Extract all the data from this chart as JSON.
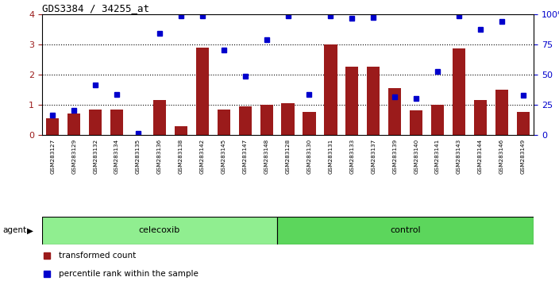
{
  "title": "GDS3384 / 34255_at",
  "samples": [
    "GSM283127",
    "GSM283129",
    "GSM283132",
    "GSM283134",
    "GSM283135",
    "GSM283136",
    "GSM283138",
    "GSM283142",
    "GSM283145",
    "GSM283147",
    "GSM283148",
    "GSM283128",
    "GSM283130",
    "GSM283131",
    "GSM283133",
    "GSM283137",
    "GSM283139",
    "GSM283140",
    "GSM283141",
    "GSM283143",
    "GSM283144",
    "GSM283146",
    "GSM283149"
  ],
  "red_bars": [
    0.55,
    0.7,
    0.85,
    0.85,
    0.0,
    1.15,
    0.28,
    2.9,
    0.85,
    0.95,
    1.0,
    1.05,
    0.75,
    3.0,
    2.25,
    2.25,
    1.55,
    0.8,
    1.0,
    2.85,
    1.15,
    1.5,
    0.75
  ],
  "blue_squares": [
    0.65,
    0.8,
    1.65,
    1.35,
    0.05,
    3.35,
    3.95,
    3.95,
    2.8,
    1.95,
    3.15,
    3.95,
    1.35,
    3.95,
    3.85,
    3.9,
    1.25,
    1.2,
    2.1,
    3.95,
    3.5,
    3.75,
    1.3
  ],
  "celecoxib_count": 11,
  "total_count": 23,
  "ylim_left": [
    0,
    4
  ],
  "ylim_right": [
    0,
    100
  ],
  "yticks_left": [
    0,
    1,
    2,
    3,
    4
  ],
  "yticks_right": [
    0,
    25,
    50,
    75,
    100
  ],
  "bar_color": "#9B1B1B",
  "square_color": "#0000CC",
  "celecoxib_color": "#90EE90",
  "control_color": "#5CD65C",
  "agent_label": "agent",
  "celecoxib_label": "celecoxib",
  "control_label": "control",
  "legend_red": "transformed count",
  "legend_blue": "percentile rank within the sample",
  "bg_color": "#FFFFFF",
  "tick_area_color": "#C8C8C8"
}
